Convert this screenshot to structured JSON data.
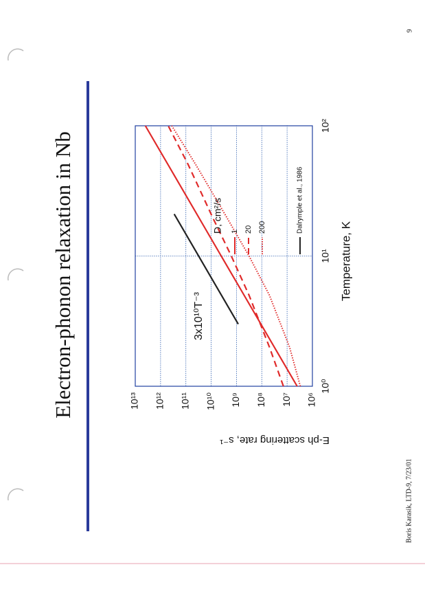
{
  "chart_data": {
    "type": "line",
    "title": "Electron-phonon relaxation in Nb",
    "x_label": "Temperature, K",
    "y_label": "E-ph scattering rate, s⁻¹",
    "annotation": "3x10¹⁰T⁻³",
    "legend_title": "D, cm²/s",
    "log_x": true,
    "log_y": true,
    "grid": true,
    "xlim": [
      1,
      100
    ],
    "xticks": [
      {
        "value": 1,
        "label": "10⁰"
      },
      {
        "value": 10,
        "label": "10¹"
      },
      {
        "value": 100,
        "label": "10²"
      }
    ],
    "ylim": [
      1000000,
      10000000000000
    ],
    "yticks": [
      {
        "value": 1000000,
        "label": "10⁶"
      },
      {
        "value": 10000000,
        "label": "10⁷"
      },
      {
        "value": 100000000,
        "label": "10⁸"
      },
      {
        "value": 1000000000,
        "label": "10⁹"
      },
      {
        "value": 10000000000,
        "label": "10¹⁰"
      },
      {
        "value": 100000000000,
        "label": "10¹¹"
      },
      {
        "value": 1000000000000,
        "label": "10¹²"
      },
      {
        "value": 10000000000000,
        "label": "10¹³"
      }
    ],
    "series": [
      {
        "name": "1",
        "color": "#e02a2a",
        "dash": "solid",
        "x": [
          1,
          2,
          5,
          10,
          20,
          50,
          100
        ],
        "values": [
          4000000,
          32000000,
          500000000,
          4000000000,
          32000000000,
          500000000000,
          4000000000000
        ]
      },
      {
        "name": "20",
        "color": "#e02a2a",
        "dash": "dashed",
        "x": [
          1,
          2,
          5,
          10,
          20,
          50,
          100
        ],
        "values": [
          14000000,
          50000000,
          320000000,
          1600000000,
          9000000000,
          80000000000,
          500000000000
        ]
      },
      {
        "name": "200",
        "color": "#e02a2a",
        "dash": "dotted",
        "x": [
          1,
          2,
          5,
          10,
          20,
          50,
          100
        ],
        "values": [
          3000000,
          8000000,
          50000000,
          320000000,
          2500000000,
          40000000000,
          360000000000
        ]
      },
      {
        "name": "Dalrymple et al., 1986",
        "color": "#222222",
        "dash": "solid",
        "x": [
          3,
          21
        ],
        "values": [
          850000000,
          290000000000
        ]
      }
    ]
  },
  "footer": "Boris Karasik, LTD-9, 7/23/01",
  "page_number": "9"
}
